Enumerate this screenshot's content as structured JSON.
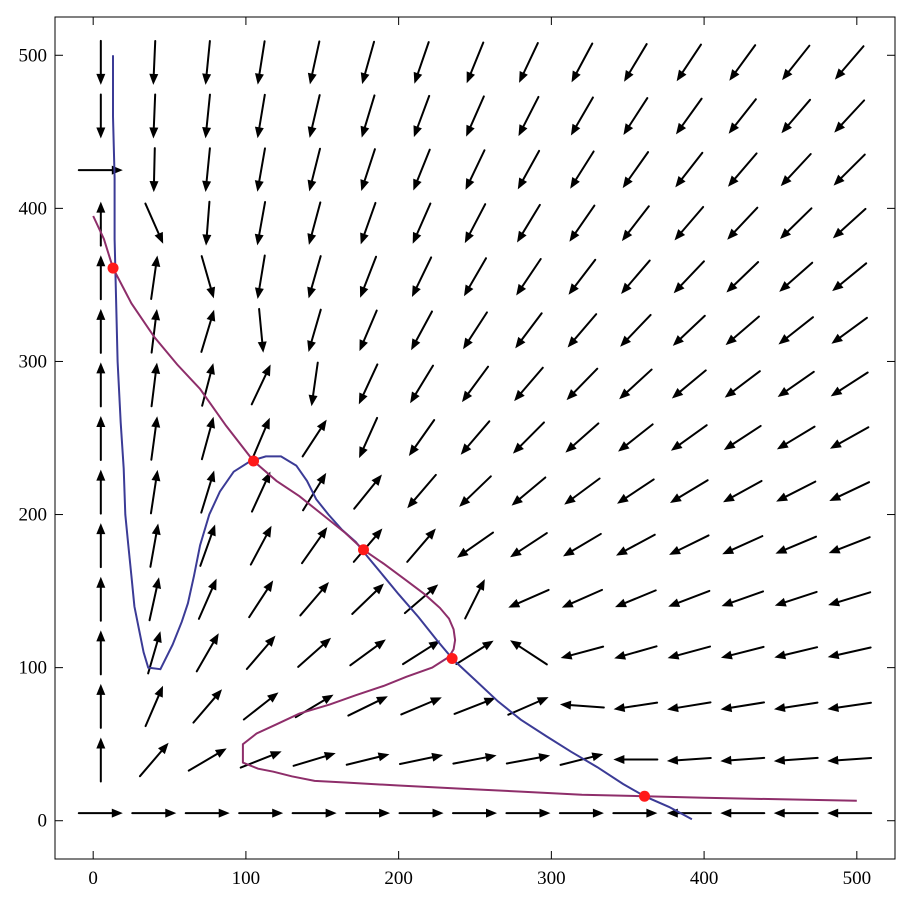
{
  "chart_data": {
    "type": "vector_field_with_curves",
    "title": "",
    "xlabel": "",
    "ylabel": "",
    "xlim": [
      -25,
      525
    ],
    "ylim": [
      -25,
      525
    ],
    "x_ticks": [
      0,
      100,
      200,
      300,
      400,
      500
    ],
    "y_ticks": [
      0,
      100,
      200,
      300,
      400,
      500
    ],
    "x_tick_labels": [
      "0",
      "100",
      "200",
      "300",
      "400",
      "500"
    ],
    "y_tick_labels": [
      "0",
      "100",
      "200",
      "300",
      "400",
      "500"
    ],
    "grid": false,
    "colors": {
      "curve_1": "#3b3b96",
      "curve_2": "#8e2e6a",
      "points": "#ff1a1a",
      "arrows": "#000000"
    },
    "curves": [
      {
        "points": [
          [
            13,
            500
          ],
          [
            13,
            460
          ],
          [
            14,
            420
          ],
          [
            14,
            380
          ],
          [
            15,
            340
          ],
          [
            16,
            300
          ],
          [
            18,
            260
          ],
          [
            20,
            230
          ],
          [
            21,
            200
          ],
          [
            23,
            180
          ],
          [
            25,
            160
          ],
          [
            27,
            140
          ],
          [
            30,
            125
          ],
          [
            33,
            110
          ],
          [
            36,
            100
          ],
          [
            44,
            99
          ],
          [
            52,
            115
          ],
          [
            58,
            130
          ],
          [
            62,
            142
          ],
          [
            66,
            160
          ],
          [
            70,
            180
          ],
          [
            76,
            200
          ],
          [
            83,
            215
          ],
          [
            92,
            228
          ],
          [
            103,
            235
          ],
          [
            113,
            238
          ],
          [
            123,
            238
          ],
          [
            133,
            232
          ],
          [
            140,
            222
          ],
          [
            146,
            210
          ],
          [
            154,
            200
          ],
          [
            163,
            190
          ],
          [
            172,
            182
          ],
          [
            180,
            172
          ],
          [
            190,
            160
          ],
          [
            200,
            148
          ],
          [
            213,
            133
          ],
          [
            225,
            118
          ],
          [
            236,
            105
          ],
          [
            250,
            92
          ],
          [
            265,
            78
          ],
          [
            280,
            66
          ],
          [
            297,
            55
          ],
          [
            313,
            45
          ],
          [
            330,
            35
          ],
          [
            347,
            24
          ],
          [
            361,
            16
          ],
          [
            377,
            9
          ],
          [
            392,
            1
          ]
        ]
      },
      {
        "points": [
          [
            0,
            395
          ],
          [
            7,
            380
          ],
          [
            13,
            361
          ],
          [
            25,
            338
          ],
          [
            40,
            316
          ],
          [
            55,
            298
          ],
          [
            70,
            282
          ],
          [
            87,
            258
          ],
          [
            105,
            235
          ],
          [
            120,
            222
          ],
          [
            135,
            212
          ],
          [
            150,
            200
          ],
          [
            165,
            188
          ],
          [
            177,
            177
          ],
          [
            190,
            168
          ],
          [
            205,
            157
          ],
          [
            217,
            148
          ],
          [
            227,
            139
          ],
          [
            233,
            132
          ],
          [
            236,
            125
          ],
          [
            237,
            118
          ],
          [
            236,
            112
          ],
          [
            233,
            107
          ],
          [
            222,
            100
          ],
          [
            205,
            94
          ],
          [
            190,
            88
          ],
          [
            172,
            82
          ],
          [
            155,
            76
          ],
          [
            135,
            70
          ],
          [
            120,
            63
          ],
          [
            107,
            57
          ],
          [
            98,
            50
          ],
          [
            98,
            38
          ],
          [
            108,
            34
          ],
          [
            118,
            32
          ],
          [
            130,
            29
          ],
          [
            145,
            26
          ],
          [
            165,
            25
          ],
          [
            200,
            23
          ],
          [
            240,
            21
          ],
          [
            280,
            19
          ],
          [
            320,
            17
          ],
          [
            361,
            16
          ],
          [
            400,
            15
          ],
          [
            450,
            14
          ],
          [
            500,
            13
          ]
        ]
      }
    ],
    "points": [
      [
        13,
        361
      ],
      [
        105,
        235
      ],
      [
        177,
        177
      ],
      [
        235,
        106
      ],
      [
        361,
        16
      ]
    ]
  }
}
